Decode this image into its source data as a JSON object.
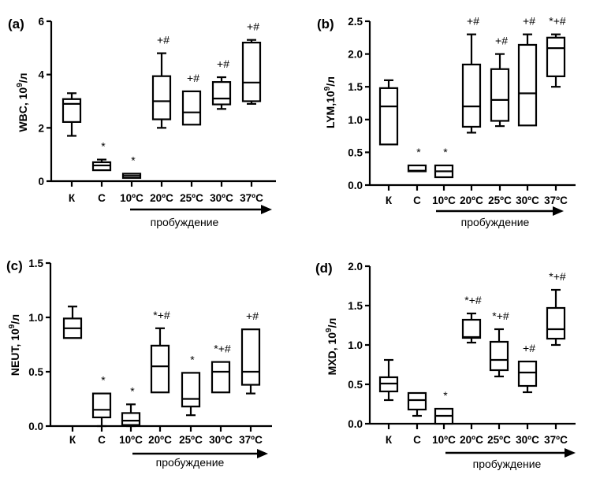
{
  "chart_data": [
    {
      "type": "box",
      "panel": "(a)",
      "ylabel": "WBC, 10^9/л",
      "ylabel_main": "WBC, 10",
      "ylabel_sup": "9",
      "ylabel_unit": "/л",
      "ylim": [
        0,
        6
      ],
      "yticks": [
        0,
        2,
        4,
        6
      ],
      "ytick_labels": [
        "0",
        "2",
        "4",
        "6"
      ],
      "categories": [
        "К",
        "С",
        "10ºC",
        "20ºC",
        "25ºC",
        "30ºC",
        "37ºC"
      ],
      "arrow_label": "пробуждение",
      "boxes": [
        {
          "min": 1.7,
          "q1": 2.22,
          "median": 2.9,
          "q3": 3.08,
          "max": 3.3,
          "annotation": ""
        },
        {
          "min": 0.41,
          "q1": 0.41,
          "median": 0.59,
          "q3": 0.71,
          "max": 0.81,
          "annotation": "*"
        },
        {
          "min": 0.12,
          "q1": 0.12,
          "median": 0.2,
          "q3": 0.28,
          "max": 0.28,
          "annotation": "*"
        },
        {
          "min": 2.0,
          "q1": 2.32,
          "median": 3.0,
          "q3": 3.94,
          "max": 4.8,
          "annotation": "+#"
        },
        {
          "min": 2.12,
          "q1": 2.12,
          "median": 2.58,
          "q3": 3.37,
          "max": 3.37,
          "annotation": "+#"
        },
        {
          "min": 2.71,
          "q1": 2.88,
          "median": 3.1,
          "q3": 3.72,
          "max": 3.9,
          "annotation": "+#"
        },
        {
          "min": 2.9,
          "q1": 3.0,
          "median": 3.7,
          "q3": 5.2,
          "max": 5.3,
          "annotation": "+#"
        }
      ]
    },
    {
      "type": "box",
      "panel": "(b)",
      "ylabel": "LYM,10^9/л",
      "ylabel_main": "LYM,10",
      "ylabel_sup": "9",
      "ylabel_unit": "/л",
      "ylim": [
        0,
        2.5
      ],
      "yticks": [
        0,
        0.5,
        1.0,
        1.5,
        2.0,
        2.5
      ],
      "ytick_labels": [
        "0.0",
        "0.5",
        "1.0",
        "1.5",
        "2.0",
        "2.5"
      ],
      "categories": [
        "К",
        "С",
        "10ºC",
        "20ºC",
        "25ºC",
        "30ºC",
        "37ºC"
      ],
      "arrow_label": "пробуждение",
      "boxes": [
        {
          "min": 0.62,
          "q1": 0.62,
          "median": 1.2,
          "q3": 1.48,
          "max": 1.6,
          "annotation": ""
        },
        {
          "min": 0.21,
          "q1": 0.21,
          "median": 0.22,
          "q3": 0.3,
          "max": 0.3,
          "annotation": "*"
        },
        {
          "min": 0.12,
          "q1": 0.12,
          "median": 0.21,
          "q3": 0.3,
          "max": 0.3,
          "annotation": "*"
        },
        {
          "min": 0.8,
          "q1": 0.89,
          "median": 1.2,
          "q3": 1.84,
          "max": 2.3,
          "annotation": "+#"
        },
        {
          "min": 0.9,
          "q1": 0.98,
          "median": 1.3,
          "q3": 1.77,
          "max": 2.0,
          "annotation": "+#"
        },
        {
          "min": 0.91,
          "q1": 0.91,
          "median": 1.4,
          "q3": 2.14,
          "max": 2.3,
          "annotation": "+#"
        },
        {
          "min": 1.5,
          "q1": 1.66,
          "median": 2.09,
          "q3": 2.25,
          "max": 2.3,
          "annotation": "*+#"
        }
      ]
    },
    {
      "type": "box",
      "panel": "(c)",
      "ylabel": "NEUT, 10^9/л",
      "ylabel_main": "NEUT, 10",
      "ylabel_sup": "9",
      "ylabel_unit": "/л",
      "ylim": [
        0,
        1.5
      ],
      "yticks": [
        0,
        0.5,
        1.0,
        1.5
      ],
      "ytick_labels": [
        "0.0",
        "0.5",
        "1.0",
        "1.5"
      ],
      "categories": [
        "К",
        "С",
        "10ºC",
        "20ºC",
        "25ºC",
        "30ºC",
        "37ºC"
      ],
      "arrow_label": "пробуждение",
      "boxes": [
        {
          "min": 0.81,
          "q1": 0.81,
          "median": 0.9,
          "q3": 0.99,
          "max": 1.1,
          "annotation": ""
        },
        {
          "min": 0.0,
          "q1": 0.08,
          "median": 0.15,
          "q3": 0.3,
          "max": 0.3,
          "annotation": "*"
        },
        {
          "min": 0.0,
          "q1": 0.01,
          "median": 0.05,
          "q3": 0.12,
          "max": 0.2,
          "annotation": "*"
        },
        {
          "min": 0.31,
          "q1": 0.31,
          "median": 0.55,
          "q3": 0.74,
          "max": 0.9,
          "annotation": "*+#"
        },
        {
          "min": 0.1,
          "q1": 0.18,
          "median": 0.25,
          "q3": 0.49,
          "max": 0.49,
          "annotation": "*"
        },
        {
          "min": 0.31,
          "q1": 0.31,
          "median": 0.5,
          "q3": 0.59,
          "max": 0.59,
          "annotation": "*+#"
        },
        {
          "min": 0.3,
          "q1": 0.38,
          "median": 0.5,
          "q3": 0.89,
          "max": 0.89,
          "annotation": "+#"
        }
      ]
    },
    {
      "type": "box",
      "panel": "(d)",
      "ylabel": "MXD, 10^9/л",
      "ylabel_main": "MXD, 10",
      "ylabel_sup": "9",
      "ylabel_unit": "/л",
      "ylim": [
        0,
        2.0
      ],
      "yticks": [
        0,
        0.5,
        1.0,
        1.5,
        2.0
      ],
      "ytick_labels": [
        "0.0",
        "0.5",
        "1.0",
        "1.5",
        "2.0"
      ],
      "categories": [
        "К",
        "С",
        "10ºC",
        "20ºC",
        "25ºC",
        "30ºC",
        "37ºC"
      ],
      "arrow_label": "пробуждение",
      "boxes": [
        {
          "min": 0.3,
          "q1": 0.41,
          "median": 0.51,
          "q3": 0.59,
          "max": 0.81,
          "annotation": ""
        },
        {
          "min": 0.1,
          "q1": 0.18,
          "median": 0.3,
          "q3": 0.39,
          "max": 0.39,
          "annotation": ""
        },
        {
          "min": 0.0,
          "q1": 0.0,
          "median": 0.1,
          "q3": 0.19,
          "max": 0.19,
          "annotation": "*"
        },
        {
          "min": 1.03,
          "q1": 1.09,
          "median": 1.1,
          "q3": 1.32,
          "max": 1.4,
          "annotation": "*+#"
        },
        {
          "min": 0.6,
          "q1": 0.68,
          "median": 0.81,
          "q3": 1.04,
          "max": 1.2,
          "annotation": "*+#"
        },
        {
          "min": 0.4,
          "q1": 0.48,
          "median": 0.65,
          "q3": 0.79,
          "max": 0.79,
          "annotation": "+#"
        },
        {
          "min": 1.0,
          "q1": 1.08,
          "median": 1.2,
          "q3": 1.47,
          "max": 1.7,
          "annotation": "*+#"
        }
      ]
    }
  ]
}
